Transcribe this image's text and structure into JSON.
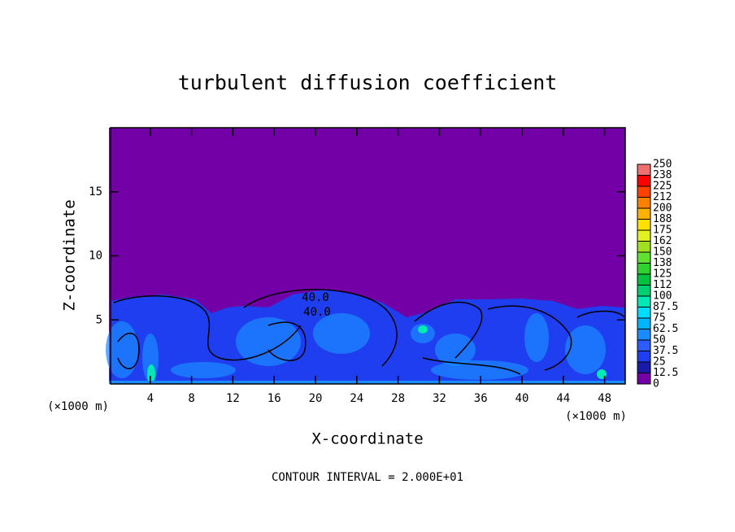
{
  "chart_data": {
    "type": "contour",
    "title": "turbulent diffusion coefficient",
    "x_label": "X-coordinate",
    "y_label": "Z-coordinate",
    "x_unit": "(×1000 m)",
    "footer": "CONTOUR INTERVAL = 2.000E+01",
    "annotations": [
      "40.0",
      "40.0"
    ],
    "xlim": [
      0,
      50
    ],
    "xticks": [
      4,
      8,
      12,
      16,
      20,
      24,
      28,
      32,
      36,
      40,
      44,
      48
    ],
    "ylim": [
      0,
      20
    ],
    "yticks": [
      5,
      10,
      15
    ],
    "colorbar": {
      "levels": [
        0,
        12.5,
        25,
        37.5,
        50,
        62.5,
        75,
        87.5,
        100,
        {
          "value": 112.5,
          "label": "112"
        },
        125,
        {
          "value": 137.5,
          "label": "138"
        },
        150,
        {
          "value": 162.5,
          "label": "162"
        },
        175,
        {
          "value": 187.5,
          "label": "188"
        },
        200,
        {
          "value": 212.5,
          "label": "212"
        },
        225,
        {
          "value": 237.5,
          "label": "238"
        },
        250
      ],
      "colors": [
        "#7200a6",
        "#1a1aa8",
        "#1f3ef0",
        "#2a5cff",
        "#1a8cff",
        "#00b4ff",
        "#00dcff",
        "#00e8b4",
        "#00d070",
        "#00c040",
        "#30d030",
        "#60e030",
        "#a0e020",
        "#e0f020",
        "#ffe000",
        "#ffb000",
        "#ff8000",
        "#ff4000",
        "#ff0000",
        "#f07070"
      ]
    }
  }
}
